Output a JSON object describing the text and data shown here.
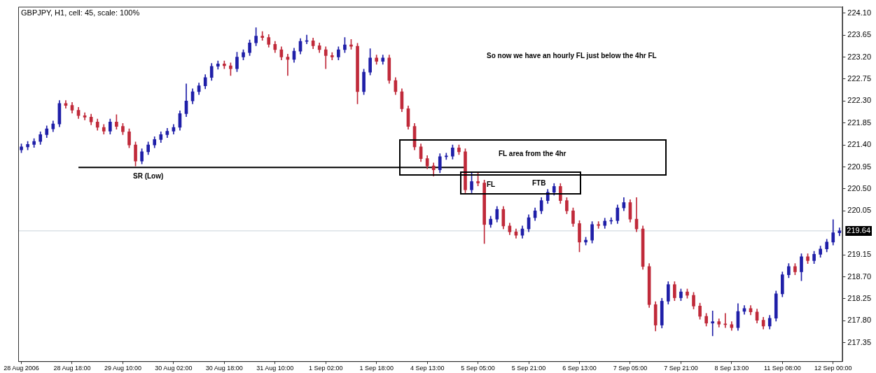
{
  "chart_data": {
    "type": "candlestick",
    "title": "GBPJPY, H1, cell: 45, scale: 100%",
    "categories": [
      "28 Aug 2006",
      null,
      null,
      null,
      null,
      null,
      null,
      null,
      "28 Aug 18:00",
      null,
      null,
      null,
      null,
      null,
      null,
      null,
      "29 Aug 10:00",
      null,
      null,
      null,
      null,
      null,
      null,
      null,
      "30 Aug 02:00",
      null,
      null,
      null,
      null,
      null,
      null,
      null,
      "30 Aug 18:00",
      null,
      null,
      null,
      null,
      null,
      null,
      null,
      "31 Aug 10:00",
      null,
      null,
      null,
      null,
      null,
      null,
      null,
      "1 Sep 02:00",
      null,
      null,
      null,
      null,
      null,
      null,
      null,
      "1 Sep 18:00",
      null,
      null,
      null,
      null,
      null,
      null,
      null,
      "4 Sep 13:00",
      null,
      null,
      null,
      null,
      null,
      null,
      null,
      "5 Sep 05:00",
      null,
      null,
      null,
      null,
      null,
      null,
      null,
      "5 Sep 21:00",
      null,
      null,
      null,
      null,
      null,
      null,
      null,
      "6 Sep 13:00",
      null,
      null,
      null,
      null,
      null,
      null,
      null,
      "7 Sep 05:00",
      null,
      null,
      null,
      null,
      null,
      null,
      null,
      "7 Sep 21:00",
      null,
      null,
      null,
      null,
      null,
      null,
      null,
      "8 Sep 13:00",
      null,
      null,
      null,
      null,
      null,
      null,
      null,
      "11 Sep 08:00",
      null,
      null,
      null,
      null,
      null,
      null,
      null,
      "12 Sep 00:00",
      null
    ],
    "ohlc": [
      [
        221.3,
        221.42,
        221.24,
        221.36
      ],
      [
        221.36,
        221.47,
        221.3,
        221.41
      ],
      [
        221.41,
        221.53,
        221.35,
        221.47
      ],
      [
        221.47,
        221.67,
        221.41,
        221.61
      ],
      [
        221.61,
        221.79,
        221.55,
        221.73
      ],
      [
        221.73,
        221.89,
        221.67,
        221.83
      ],
      [
        221.83,
        222.31,
        221.77,
        222.25
      ],
      [
        222.25,
        222.31,
        222.15,
        222.21
      ],
      [
        222.21,
        222.27,
        222.05,
        222.11
      ],
      [
        222.11,
        222.17,
        221.94,
        222.0
      ],
      [
        222.0,
        222.06,
        221.91,
        221.97
      ],
      [
        221.97,
        222.03,
        221.81,
        221.87
      ],
      [
        221.87,
        221.93,
        221.7,
        221.76
      ],
      [
        221.76,
        221.82,
        221.62,
        221.68
      ],
      [
        221.68,
        221.93,
        221.62,
        221.87
      ],
      [
        221.87,
        222.02,
        221.72,
        221.78
      ],
      [
        221.78,
        221.84,
        221.61,
        221.67
      ],
      [
        221.67,
        221.73,
        221.34,
        221.4
      ],
      [
        221.4,
        221.46,
        220.97,
        221.07
      ],
      [
        221.07,
        221.32,
        221.01,
        221.26
      ],
      [
        221.26,
        221.46,
        221.2,
        221.4
      ],
      [
        221.4,
        221.57,
        221.34,
        221.51
      ],
      [
        221.51,
        221.67,
        221.45,
        221.61
      ],
      [
        221.61,
        221.74,
        221.55,
        221.68
      ],
      [
        221.68,
        221.82,
        221.62,
        221.76
      ],
      [
        221.76,
        222.1,
        221.7,
        222.04
      ],
      [
        222.04,
        222.65,
        221.98,
        222.3
      ],
      [
        222.3,
        222.55,
        222.24,
        222.49
      ],
      [
        222.49,
        222.67,
        222.43,
        222.61
      ],
      [
        222.61,
        222.84,
        222.55,
        222.78
      ],
      [
        222.78,
        223.07,
        222.72,
        223.01
      ],
      [
        223.01,
        223.12,
        222.95,
        223.06
      ],
      [
        223.06,
        223.12,
        222.96,
        223.02
      ],
      [
        223.02,
        223.08,
        222.82,
        222.96
      ],
      [
        222.96,
        223.3,
        222.9,
        223.2
      ],
      [
        223.2,
        223.35,
        223.14,
        223.29
      ],
      [
        223.29,
        223.55,
        223.23,
        223.49
      ],
      [
        223.49,
        223.8,
        223.43,
        223.63
      ],
      [
        223.63,
        223.72,
        223.54,
        223.6
      ],
      [
        223.6,
        223.66,
        223.4,
        223.46
      ],
      [
        223.46,
        223.52,
        223.29,
        223.35
      ],
      [
        223.35,
        223.41,
        223.14,
        223.2
      ],
      [
        223.2,
        223.26,
        222.82,
        223.15
      ],
      [
        223.15,
        223.38,
        223.09,
        223.32
      ],
      [
        223.32,
        223.58,
        223.26,
        223.52
      ],
      [
        223.52,
        223.65,
        223.47,
        223.53
      ],
      [
        223.53,
        223.59,
        223.37,
        223.43
      ],
      [
        223.43,
        223.49,
        223.29,
        223.35
      ],
      [
        223.35,
        223.41,
        222.96,
        223.23
      ],
      [
        223.23,
        223.29,
        223.14,
        223.2
      ],
      [
        223.2,
        223.41,
        223.14,
        223.35
      ],
      [
        223.35,
        223.6,
        223.29,
        223.45
      ],
      [
        223.45,
        223.56,
        223.36,
        223.42
      ],
      [
        223.42,
        223.48,
        222.24,
        222.49
      ],
      [
        222.49,
        222.95,
        222.43,
        222.89
      ],
      [
        222.89,
        223.37,
        222.83,
        223.18
      ],
      [
        223.18,
        223.24,
        223.05,
        223.11
      ],
      [
        223.11,
        223.24,
        223.05,
        223.18
      ],
      [
        223.18,
        223.24,
        222.66,
        222.72
      ],
      [
        222.72,
        222.78,
        222.43,
        222.49
      ],
      [
        222.49,
        222.55,
        222.08,
        222.14
      ],
      [
        222.14,
        222.2,
        221.72,
        221.78
      ],
      [
        221.78,
        221.84,
        221.3,
        221.36
      ],
      [
        221.36,
        221.42,
        221.06,
        221.12
      ],
      [
        221.12,
        221.18,
        220.91,
        220.97
      ],
      [
        220.97,
        221.03,
        220.76,
        220.89
      ],
      [
        220.89,
        221.22,
        220.83,
        221.16
      ],
      [
        221.16,
        221.23,
        221.1,
        221.17
      ],
      [
        221.17,
        221.4,
        221.11,
        221.34
      ],
      [
        221.34,
        221.4,
        221.2,
        221.26
      ],
      [
        221.26,
        221.32,
        220.42,
        220.48
      ],
      [
        220.48,
        220.83,
        220.42,
        220.65
      ],
      [
        220.65,
        220.83,
        220.56,
        220.62
      ],
      [
        220.62,
        220.68,
        219.38,
        219.77
      ],
      [
        219.77,
        219.94,
        219.71,
        219.88
      ],
      [
        219.88,
        220.14,
        219.82,
        220.08
      ],
      [
        220.08,
        220.14,
        219.68,
        219.74
      ],
      [
        219.74,
        219.8,
        219.56,
        219.62
      ],
      [
        219.62,
        219.68,
        219.49,
        219.55
      ],
      [
        219.55,
        219.74,
        219.49,
        219.68
      ],
      [
        219.68,
        219.97,
        219.62,
        219.91
      ],
      [
        219.91,
        220.11,
        219.85,
        220.05
      ],
      [
        220.05,
        220.32,
        219.99,
        220.26
      ],
      [
        220.26,
        220.49,
        220.2,
        220.43
      ],
      [
        220.43,
        220.61,
        220.37,
        220.55
      ],
      [
        220.55,
        220.61,
        220.2,
        220.26
      ],
      [
        220.26,
        220.32,
        219.99,
        220.05
      ],
      [
        220.05,
        220.11,
        219.73,
        219.79
      ],
      [
        219.79,
        219.85,
        219.21,
        219.41
      ],
      [
        219.41,
        219.51,
        219.35,
        219.45
      ],
      [
        219.45,
        219.83,
        219.39,
        219.77
      ],
      [
        219.77,
        219.83,
        219.69,
        219.75
      ],
      [
        219.75,
        219.9,
        219.69,
        219.84
      ],
      [
        219.84,
        219.91,
        219.78,
        219.85
      ],
      [
        219.85,
        220.17,
        219.79,
        220.11
      ],
      [
        220.11,
        220.32,
        220.05,
        220.22
      ],
      [
        220.22,
        220.28,
        219.82,
        219.88
      ],
      [
        219.88,
        220.32,
        219.62,
        219.68
      ],
      [
        219.68,
        219.74,
        218.85,
        218.91
      ],
      [
        218.91,
        218.97,
        218.07,
        218.13
      ],
      [
        218.13,
        218.19,
        217.59,
        217.71
      ],
      [
        217.71,
        218.26,
        217.65,
        218.2
      ],
      [
        218.2,
        218.6,
        218.14,
        218.54
      ],
      [
        218.54,
        218.6,
        218.21,
        218.27
      ],
      [
        218.27,
        218.45,
        218.21,
        218.39
      ],
      [
        218.39,
        218.45,
        218.26,
        218.32
      ],
      [
        218.32,
        218.38,
        218.04,
        218.1
      ],
      [
        218.1,
        218.16,
        217.83,
        217.89
      ],
      [
        217.89,
        217.95,
        217.69,
        217.75
      ],
      [
        217.75,
        218.0,
        217.49,
        217.78
      ],
      [
        217.78,
        217.84,
        217.67,
        217.73
      ],
      [
        217.73,
        217.95,
        217.66,
        217.72
      ],
      [
        217.72,
        217.78,
        217.6,
        217.66
      ],
      [
        217.66,
        218.15,
        217.6,
        217.99
      ],
      [
        217.99,
        218.11,
        217.93,
        218.05
      ],
      [
        218.05,
        218.11,
        217.92,
        217.98
      ],
      [
        217.98,
        218.04,
        217.75,
        217.81
      ],
      [
        217.81,
        217.87,
        217.63,
        217.69
      ],
      [
        217.69,
        217.91,
        217.63,
        217.85
      ],
      [
        217.85,
        218.41,
        217.79,
        218.35
      ],
      [
        218.35,
        218.8,
        218.29,
        218.74
      ],
      [
        218.74,
        218.97,
        218.68,
        218.91
      ],
      [
        218.91,
        218.97,
        218.74,
        218.8
      ],
      [
        218.8,
        219.17,
        218.62,
        219.11
      ],
      [
        219.11,
        219.17,
        218.97,
        219.03
      ],
      [
        219.03,
        219.22,
        218.97,
        219.16
      ],
      [
        219.16,
        219.33,
        219.1,
        219.27
      ],
      [
        219.27,
        219.47,
        219.21,
        219.41
      ],
      [
        219.41,
        219.87,
        219.35,
        219.6
      ],
      [
        219.6,
        219.7,
        219.54,
        219.64
      ]
    ],
    "colors": [
      "#1f1fa8",
      "#1f1fa8",
      "#1f1fa8",
      "#1f1fa8",
      "#1f1fa8",
      "#1f1fa8",
      "#1f1fa8",
      "#c02a3a",
      "#c02a3a",
      "#c02a3a",
      "#c02a3a",
      "#c02a3a",
      "#c02a3a",
      "#c02a3a",
      "#1f1fa8",
      "#c02a3a",
      "#c02a3a",
      "#c02a3a",
      "#c02a3a",
      "#1f1fa8",
      "#1f1fa8",
      "#1f1fa8",
      "#1f1fa8",
      "#1f1fa8",
      "#1f1fa8",
      "#1f1fa8",
      "#1f1fa8",
      "#1f1fa8",
      "#1f1fa8",
      "#1f1fa8",
      "#1f1fa8",
      "#1f1fa8",
      "#c02a3a",
      "#c02a3a",
      "#1f1fa8",
      "#1f1fa8",
      "#1f1fa8",
      "#1f1fa8",
      "#c02a3a",
      "#c02a3a",
      "#c02a3a",
      "#c02a3a",
      "#c02a3a",
      "#1f1fa8",
      "#1f1fa8",
      "#1f1fa8",
      "#c02a3a",
      "#c02a3a",
      "#c02a3a",
      "#c02a3a",
      "#1f1fa8",
      "#1f1fa8",
      "#c02a3a",
      "#c02a3a",
      "#1f1fa8",
      "#1f1fa8",
      "#c02a3a",
      "#1f1fa8",
      "#c02a3a",
      "#c02a3a",
      "#c02a3a",
      "#c02a3a",
      "#c02a3a",
      "#c02a3a",
      "#c02a3a",
      "#c02a3a",
      "#1f1fa8",
      "#1f1fa8",
      "#1f1fa8",
      "#c02a3a",
      "#c02a3a",
      "#1f1fa8",
      "#c02a3a",
      "#c02a3a",
      "#1f1fa8",
      "#1f1fa8",
      "#c02a3a",
      "#c02a3a",
      "#c02a3a",
      "#1f1fa8",
      "#1f1fa8",
      "#1f1fa8",
      "#1f1fa8",
      "#1f1fa8",
      "#1f1fa8",
      "#c02a3a",
      "#c02a3a",
      "#c02a3a",
      "#c02a3a",
      "#1f1fa8",
      "#1f1fa8",
      "#c02a3a",
      "#1f1fa8",
      "#1f1fa8",
      "#1f1fa8",
      "#1f1fa8",
      "#c02a3a",
      "#c02a3a",
      "#c02a3a",
      "#c02a3a",
      "#c02a3a",
      "#1f1fa8",
      "#1f1fa8",
      "#c02a3a",
      "#1f1fa8",
      "#c02a3a",
      "#c02a3a",
      "#c02a3a",
      "#c02a3a",
      "#1f1fa8",
      "#c02a3a",
      "#c02a3a",
      "#c02a3a",
      "#1f1fa8",
      "#1f1fa8",
      "#c02a3a",
      "#c02a3a",
      "#c02a3a",
      "#1f1fa8",
      "#1f1fa8",
      "#1f1fa8",
      "#1f1fa8",
      "#c02a3a",
      "#1f1fa8",
      "#c02a3a",
      "#1f1fa8",
      "#1f1fa8",
      "#1f1fa8",
      "#1f1fa8",
      "#1f1fa8"
    ],
    "series": [
      {
        "type": "line",
        "color": "#000000",
        "values": [
          null,
          null,
          null,
          null,
          null,
          null,
          null,
          null,
          null,
          220.94,
          null,
          null,
          null,
          null,
          null,
          null,
          null,
          null,
          null,
          null,
          null,
          null,
          null,
          null,
          null,
          null,
          null,
          null,
          null,
          null,
          null,
          null,
          null,
          null,
          null,
          null,
          null,
          null,
          null,
          null,
          null,
          null,
          null,
          null,
          null,
          null,
          null,
          null,
          null,
          null,
          null,
          null,
          null,
          null,
          null,
          null,
          null,
          null,
          null,
          null,
          null,
          null,
          null,
          null,
          null,
          null,
          null,
          null,
          null,
          null,
          220.94,
          null,
          null,
          null,
          null,
          null,
          null,
          null,
          null,
          null,
          null,
          null,
          null,
          null,
          null,
          null,
          null,
          null,
          null,
          null,
          null,
          null,
          null,
          null,
          null,
          null,
          null,
          null,
          null,
          null,
          null,
          null,
          null,
          null,
          null,
          null,
          null,
          null,
          null,
          null,
          null,
          null,
          null,
          null,
          null,
          null,
          null,
          null,
          null,
          null,
          null,
          null,
          null,
          null,
          null,
          null,
          null,
          null,
          null,
          null
        ]
      }
    ],
    "ylim": [
      216.97,
      224.23
    ],
    "yticks": [
      {
        "value": 217.35,
        "label": "217.35"
      },
      {
        "value": 217.8,
        "label": "217.80"
      },
      {
        "value": 218.25,
        "label": "218.25"
      },
      {
        "value": 218.7,
        "label": "218.70"
      },
      {
        "value": 219.15,
        "label": "219.15"
      },
      {
        "value": 220.05,
        "label": "220.05"
      },
      {
        "value": 220.5,
        "label": "220.50"
      },
      {
        "value": 220.95,
        "label": "220.95"
      },
      {
        "value": 221.4,
        "label": "221.40"
      },
      {
        "value": 221.85,
        "label": "221.85"
      },
      {
        "value": 222.3,
        "label": "222.30"
      },
      {
        "value": 222.75,
        "label": "222.75"
      },
      {
        "value": 223.2,
        "label": "223.20"
      },
      {
        "value": 223.65,
        "label": "223.65"
      },
      {
        "value": 224.1,
        "label": "224.10"
      }
    ],
    "ref_lines": [
      {
        "axis": "y",
        "value": 219.64,
        "label": "219.64",
        "color": "#c8d2da"
      }
    ],
    "annotations": [
      "SR (Low)",
      "So now we have an hourly FL just below the 4hr FL",
      "FL area from the 4hr",
      "FL",
      "FTB"
    ]
  }
}
